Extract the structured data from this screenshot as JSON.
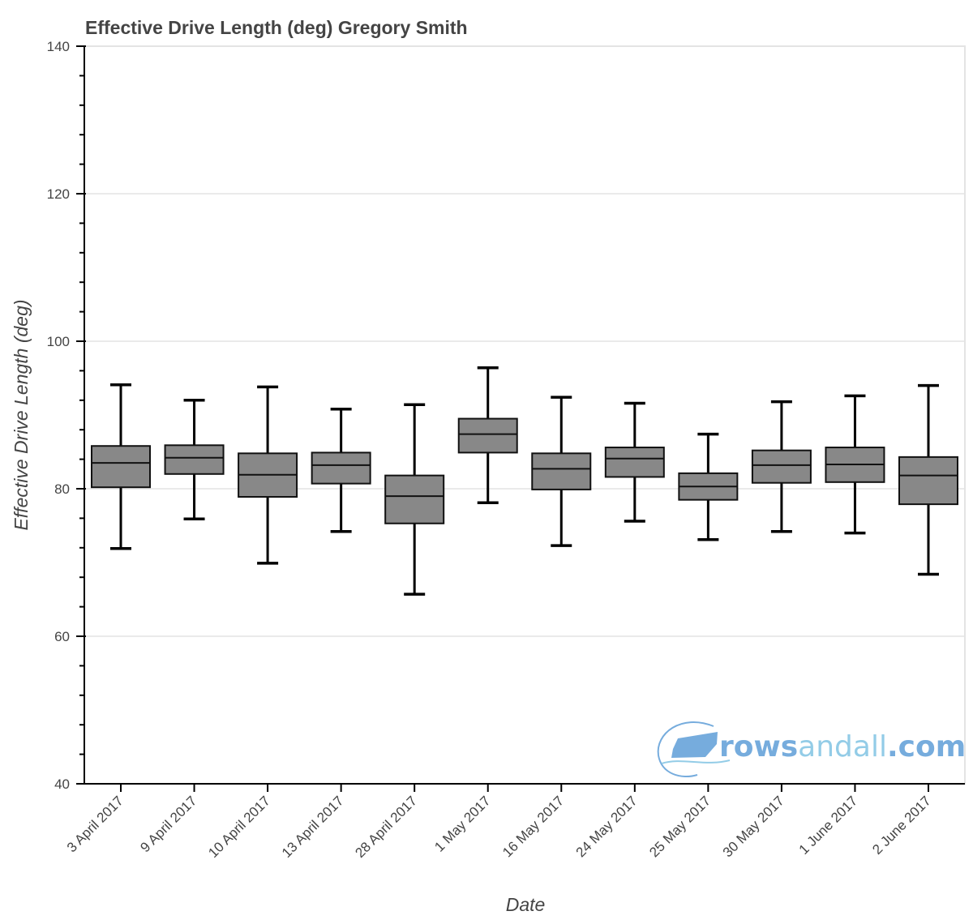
{
  "chart_data": {
    "type": "box",
    "title": "Effective Drive Length (deg)  Gregory Smith",
    "xlabel": "Date",
    "ylabel": "Effective Drive Length (deg)",
    "ylim": [
      40,
      140
    ],
    "y_major_ticks": [
      40,
      60,
      80,
      100,
      120,
      140
    ],
    "y_minor_step": 4,
    "grid": "horizontal",
    "box_color": "#888888",
    "line_color": "#000000",
    "categories": [
      "3 April 2017",
      "9 April 2017",
      "10 April 2017",
      "13 April 2017",
      "28 April 2017",
      "1 May 2017",
      "16 May 2017",
      "24 May 2017",
      "25 May 2017",
      "30 May 2017",
      "1 June 2017",
      "2 June 2017"
    ],
    "series": [
      {
        "name": "Effective Drive Length",
        "boxes": [
          {
            "category": "3 April 2017",
            "lower": 71.9,
            "q1": 80.2,
            "median": 83.5,
            "q3": 85.8,
            "upper": 94.1
          },
          {
            "category": "9 April 2017",
            "lower": 75.9,
            "q1": 82.0,
            "median": 84.2,
            "q3": 85.9,
            "upper": 92.0
          },
          {
            "category": "10 April 2017",
            "lower": 69.9,
            "q1": 78.9,
            "median": 81.9,
            "q3": 84.8,
            "upper": 93.8
          },
          {
            "category": "13 April 2017",
            "lower": 74.2,
            "q1": 80.7,
            "median": 83.2,
            "q3": 84.9,
            "upper": 90.8
          },
          {
            "category": "28 April 2017",
            "lower": 65.7,
            "q1": 75.3,
            "median": 79.0,
            "q3": 81.8,
            "upper": 91.4
          },
          {
            "category": "1 May 2017",
            "lower": 78.1,
            "q1": 84.9,
            "median": 87.4,
            "q3": 89.5,
            "upper": 96.4
          },
          {
            "category": "16 May 2017",
            "lower": 72.3,
            "q1": 79.9,
            "median": 82.7,
            "q3": 84.8,
            "upper": 92.4
          },
          {
            "category": "24 May 2017",
            "lower": 75.6,
            "q1": 81.6,
            "median": 84.1,
            "q3": 85.6,
            "upper": 91.6
          },
          {
            "category": "25 May 2017",
            "lower": 73.1,
            "q1": 78.5,
            "median": 80.3,
            "q3": 82.1,
            "upper": 87.4
          },
          {
            "category": "30 May 2017",
            "lower": 74.2,
            "q1": 80.8,
            "median": 83.2,
            "q3": 85.2,
            "upper": 91.8
          },
          {
            "category": "1 June 2017",
            "lower": 74.0,
            "q1": 80.9,
            "median": 83.3,
            "q3": 85.6,
            "upper": 92.6
          },
          {
            "category": "2 June 2017",
            "lower": 68.4,
            "q1": 77.9,
            "median": 81.8,
            "q3": 84.3,
            "upper": 94.0
          }
        ]
      }
    ]
  },
  "watermark": {
    "bold_part": "rows",
    "light_part": "andall",
    "suffix": ".com",
    "color_primary": "#6fa8dc",
    "color_light": "#8ecae6"
  }
}
